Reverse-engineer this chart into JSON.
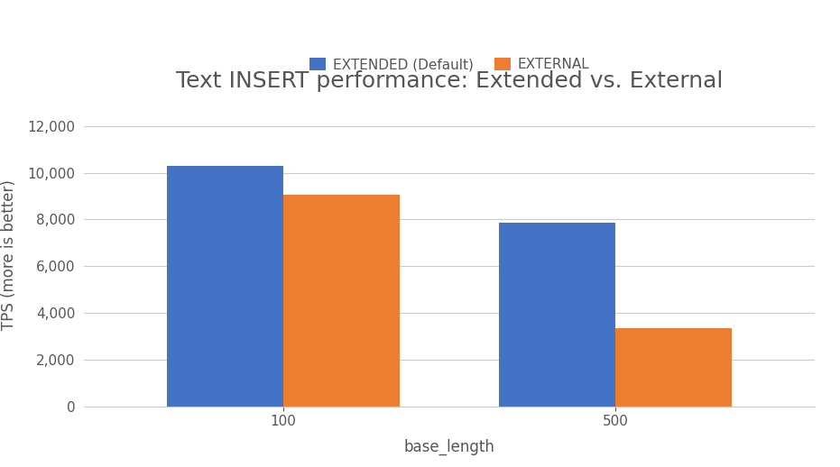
{
  "title": "Text INSERT performance: Extended vs. External",
  "xlabel": "base_length",
  "ylabel": "TPS (more is better)",
  "categories": [
    100,
    500
  ],
  "series": [
    {
      "name": "EXTENDED (Default)",
      "values": [
        10300,
        7850
      ],
      "color": "#4472C4"
    },
    {
      "name": "EXTERNAL",
      "values": [
        9050,
        3350
      ],
      "color": "#ED7D31"
    }
  ],
  "ylim": [
    0,
    13000
  ],
  "yticks": [
    0,
    2000,
    4000,
    6000,
    8000,
    10000,
    12000
  ],
  "bar_width": 0.35,
  "background_color": "#ffffff",
  "title_fontsize": 18,
  "axis_label_fontsize": 12,
  "tick_fontsize": 11,
  "legend_fontsize": 11
}
